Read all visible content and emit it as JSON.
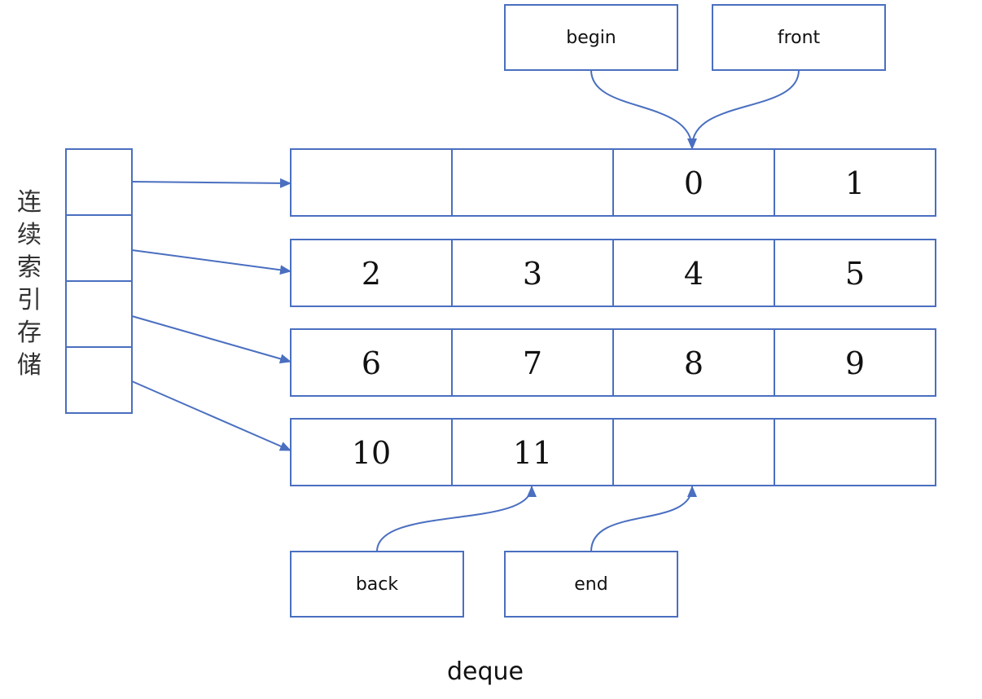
{
  "side_label": [
    "连",
    "续",
    "索",
    "引",
    "存",
    "储"
  ],
  "index_slot_count": 4,
  "chunks": [
    [
      "",
      "",
      "0",
      "1"
    ],
    [
      "2",
      "3",
      "4",
      "5"
    ],
    [
      "6",
      "7",
      "8",
      "9"
    ],
    [
      "10",
      "11",
      "",
      ""
    ]
  ],
  "pointers": {
    "begin": "begin",
    "front": "front",
    "back": "back",
    "end": "end"
  },
  "caption": "deque",
  "colors": {
    "stroke": "#4a6fc0",
    "text": "#111111"
  }
}
